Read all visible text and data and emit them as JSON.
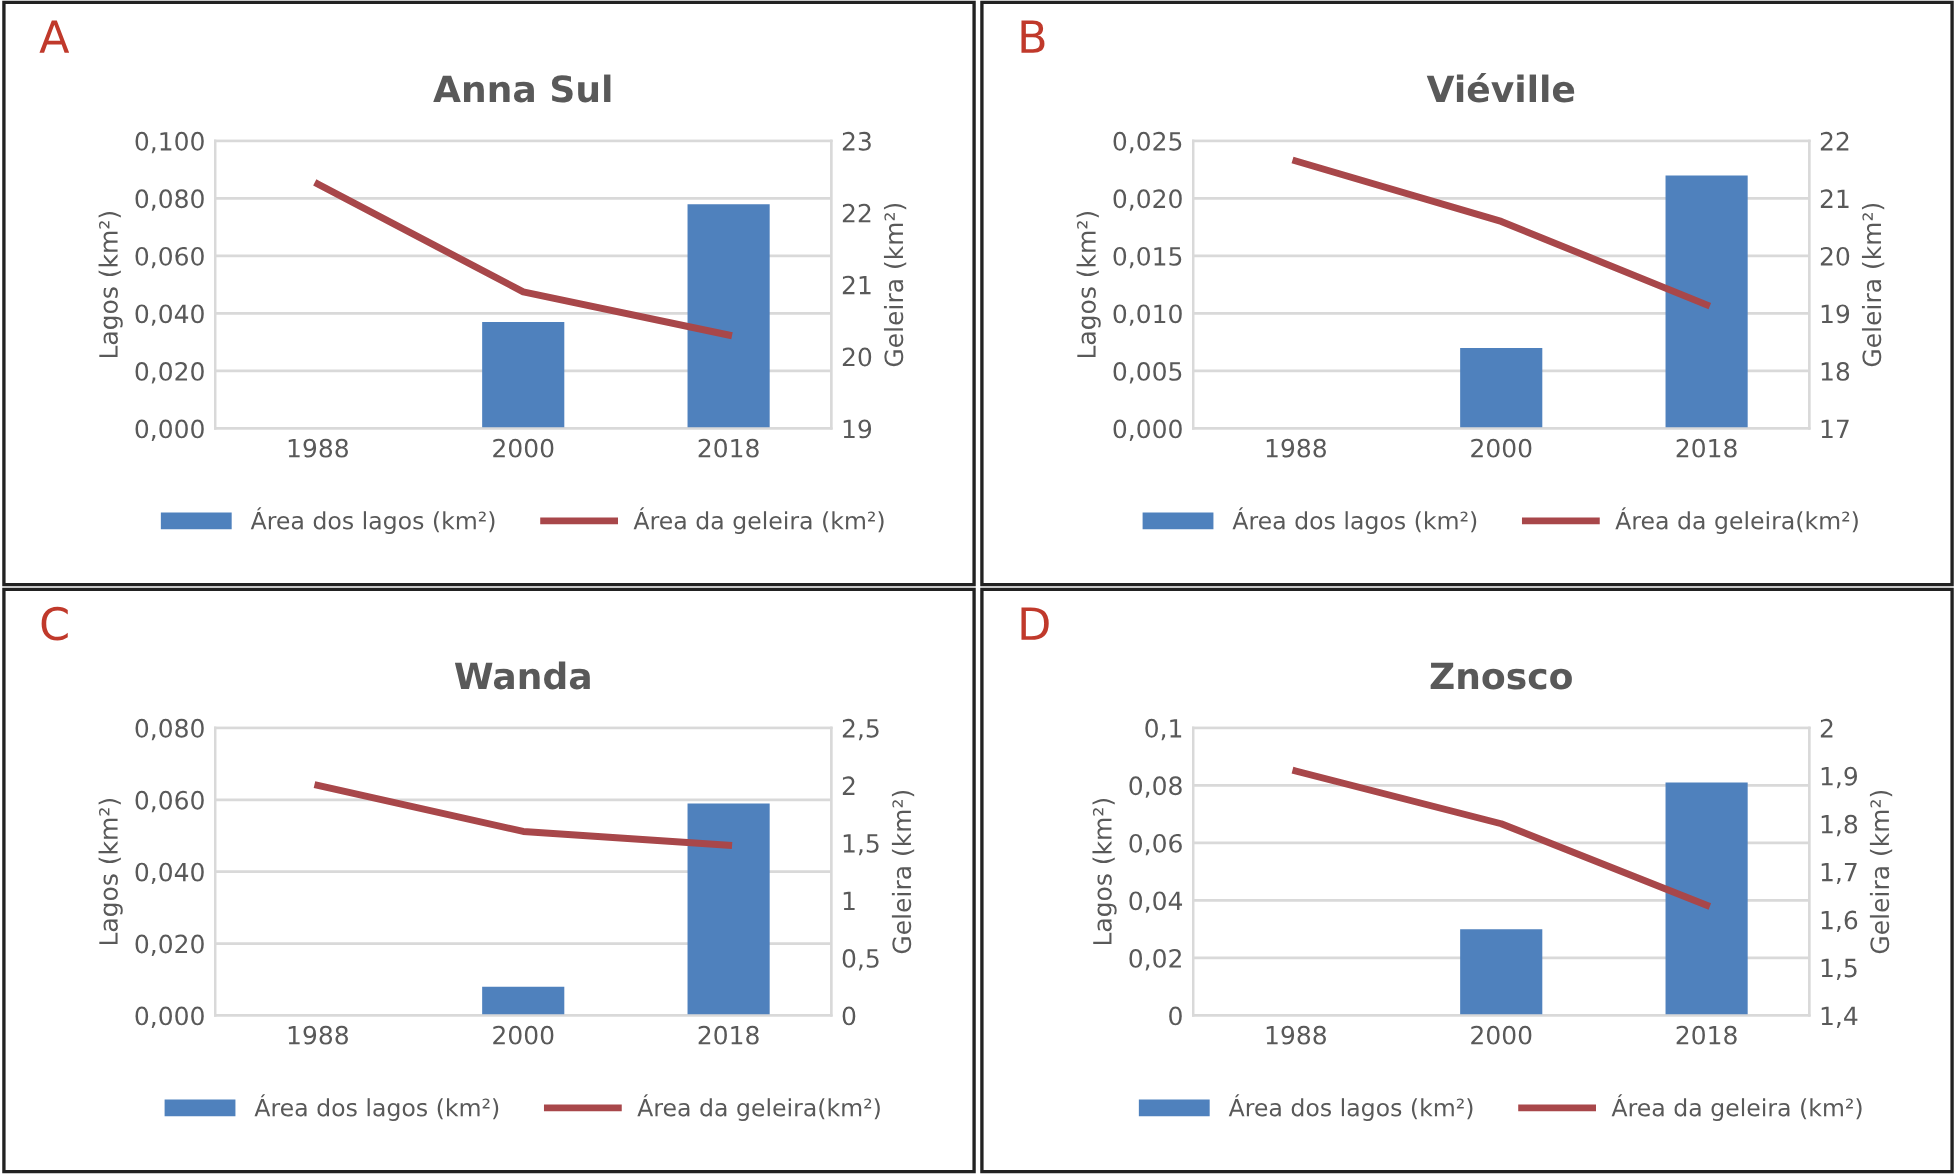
{
  "chart_data": [
    {
      "type": "bar",
      "title": "Anna Sul",
      "annotations": [
        "A"
      ],
      "ylabel": "Lagos (km²)",
      "y2label": "Geleira (km²)",
      "categories": [
        "1988",
        "2000",
        "2018"
      ],
      "grid": "y",
      "legend": "bottom",
      "ylim": [
        0,
        0.1
      ],
      "yticks": [
        {
          "value": 0,
          "label": "0,000"
        },
        {
          "value": 0.02,
          "label": "0,020"
        },
        {
          "value": 0.04,
          "label": "0,040"
        },
        {
          "value": 0.06,
          "label": "0,060"
        },
        {
          "value": 0.08,
          "label": "0,080"
        },
        {
          "value": 0.1,
          "label": "0,100"
        }
      ],
      "y2lim": [
        19,
        23
      ],
      "y2ticks": [
        19,
        20,
        21,
        22,
        23
      ],
      "series": [
        {
          "name": "Área dos lagos (km²)",
          "color": "#4f81bd",
          "values": [
            null,
            0.037,
            0.078
          ]
        },
        {
          "name": "Área da geleira (km²)",
          "type": "line",
          "axis": "y2",
          "color": "#a8474a",
          "values": [
            22.4,
            20.9,
            20.3
          ]
        }
      ]
    },
    {
      "type": "bar",
      "title": "Viéville",
      "annotations": [
        "B"
      ],
      "ylabel": "Lagos (km²)",
      "y2label": "Geleira (km²)",
      "categories": [
        "1988",
        "2000",
        "2018"
      ],
      "grid": "y",
      "legend": "bottom",
      "ylim": [
        0,
        0.025
      ],
      "yticks": [
        {
          "value": 0,
          "label": "0,000"
        },
        {
          "value": 0.005,
          "label": "0,005"
        },
        {
          "value": 0.01,
          "label": "0,010"
        },
        {
          "value": 0.015,
          "label": "0,015"
        },
        {
          "value": 0.02,
          "label": "0,020"
        },
        {
          "value": 0.025,
          "label": "0,025"
        }
      ],
      "y2lim": [
        17,
        22
      ],
      "y2ticks": [
        17,
        18,
        19,
        20,
        21,
        22
      ],
      "series": [
        {
          "name": "Área dos lagos (km²)",
          "color": "#4f81bd",
          "values": [
            null,
            0.007,
            0.022
          ]
        },
        {
          "name": "Área da geleira(km²)",
          "type": "line",
          "axis": "y2",
          "color": "#a8474a",
          "values": [
            21.65,
            20.6,
            19.15
          ]
        }
      ]
    },
    {
      "type": "bar",
      "title": "Wanda",
      "annotations": [
        "C"
      ],
      "ylabel": "Lagos (km²)",
      "y2label": "Geleira (km²)",
      "categories": [
        "1988",
        "2000",
        "2018"
      ],
      "grid": "y",
      "legend": "bottom",
      "ylim": [
        0,
        0.08
      ],
      "yticks": [
        {
          "value": 0,
          "label": "0,000"
        },
        {
          "value": 0.02,
          "label": "0,020"
        },
        {
          "value": 0.04,
          "label": "0,040"
        },
        {
          "value": 0.06,
          "label": "0,060"
        },
        {
          "value": 0.08,
          "label": "0,080"
        }
      ],
      "y2lim": [
        0,
        2.5
      ],
      "y2ticks": [
        0,
        {
          "value": 0.5,
          "label": "0,5"
        },
        1,
        {
          "value": 1.5,
          "label": "1,5"
        },
        2,
        {
          "value": 2.5,
          "label": "2,5"
        }
      ],
      "series": [
        {
          "name": "Área dos lagos (km²)",
          "color": "#4f81bd",
          "values": [
            null,
            0.008,
            0.059
          ]
        },
        {
          "name": "Área da geleira(km²)",
          "type": "line",
          "axis": "y2",
          "color": "#a8474a",
          "values": [
            2.0,
            1.6,
            1.48
          ]
        }
      ]
    },
    {
      "type": "bar",
      "title": "Znosco",
      "annotations": [
        "D"
      ],
      "ylabel": "Lagos (km²)",
      "y2label": "Geleira (km²)",
      "categories": [
        "1988",
        "2000",
        "2018"
      ],
      "grid": "y",
      "legend": "bottom",
      "ylim": [
        0,
        0.1
      ],
      "yticks": [
        0,
        {
          "value": 0.02,
          "label": "0,02"
        },
        {
          "value": 0.04,
          "label": "0,04"
        },
        {
          "value": 0.06,
          "label": "0,06"
        },
        {
          "value": 0.08,
          "label": "0,08"
        },
        {
          "value": 0.1,
          "label": "0,1"
        }
      ],
      "y2lim": [
        1.4,
        2
      ],
      "y2ticks": [
        {
          "value": 1.4,
          "label": "1,4"
        },
        {
          "value": 1.5,
          "label": "1,5"
        },
        {
          "value": 1.6,
          "label": "1,6"
        },
        {
          "value": 1.7,
          "label": "1,7"
        },
        {
          "value": 1.8,
          "label": "1,8"
        },
        {
          "value": 1.9,
          "label": "1,9"
        },
        2
      ],
      "series": [
        {
          "name": "Área dos lagos (km²)",
          "color": "#4f81bd",
          "values": [
            null,
            0.03,
            0.081
          ]
        },
        {
          "name": "Área da geleira (km²)",
          "type": "line",
          "axis": "y2",
          "color": "#a8474a",
          "values": [
            1.91,
            1.8,
            1.63
          ]
        }
      ]
    }
  ]
}
